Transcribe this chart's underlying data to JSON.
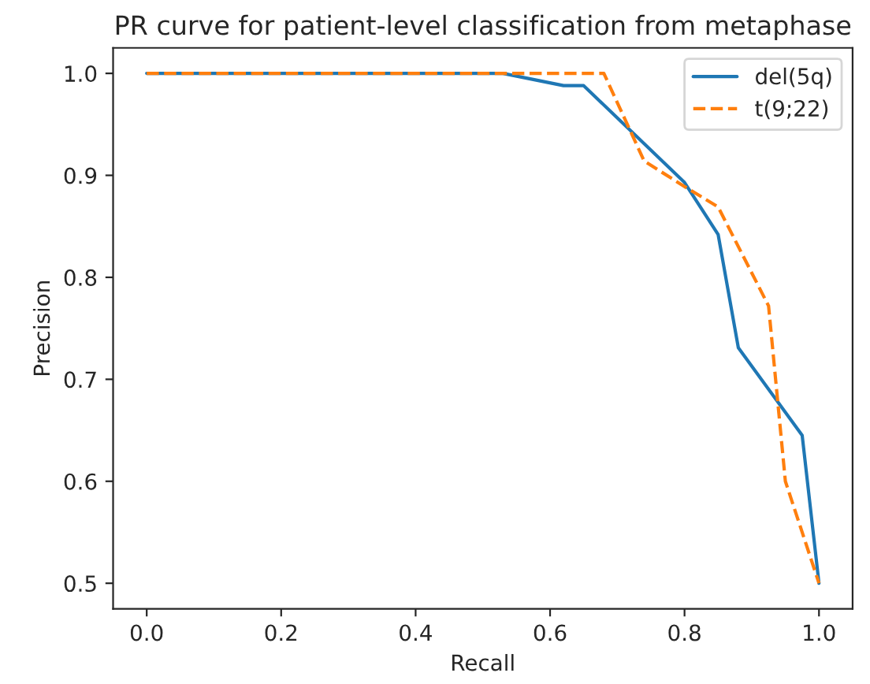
{
  "chart_data": {
    "type": "line",
    "title": "PR curve for patient-level classification from metaphase",
    "xlabel": "Recall",
    "ylabel": "Precision",
    "series": [
      {
        "name": "del(5q)",
        "color": "#1f77b4",
        "line_style": "solid",
        "x": [
          0,
          0.53,
          0.62,
          0.65,
          0.8,
          0.85,
          0.88,
          0.975,
          1.0
        ],
        "values": [
          1.0,
          1.0,
          0.988,
          0.988,
          0.893,
          0.842,
          0.731,
          0.645,
          0.5
        ]
      },
      {
        "name": "t(9;22)",
        "color": "#ff7f0e",
        "line_style": "dashed",
        "x": [
          0,
          0.68,
          0.74,
          0.8,
          0.85,
          0.925,
          0.95,
          0.975,
          1.0
        ],
        "values": [
          1.0,
          1.0,
          0.914,
          0.889,
          0.869,
          0.772,
          0.6,
          0.55,
          0.5
        ]
      }
    ],
    "xlim": [
      -0.05,
      1.05
    ],
    "xticks": [
      {
        "value": 0,
        "label": "0.0"
      },
      0.2,
      0.4,
      0.6,
      0.8,
      {
        "value": 1,
        "label": "1.0"
      }
    ],
    "ylim": [
      0.475,
      1.025
    ],
    "yticks": [
      0.5,
      0.6,
      0.7,
      0.8,
      0.9,
      {
        "value": 1,
        "label": "1.0"
      }
    ],
    "grid": false,
    "legend": "top right",
    "marker": "none"
  }
}
